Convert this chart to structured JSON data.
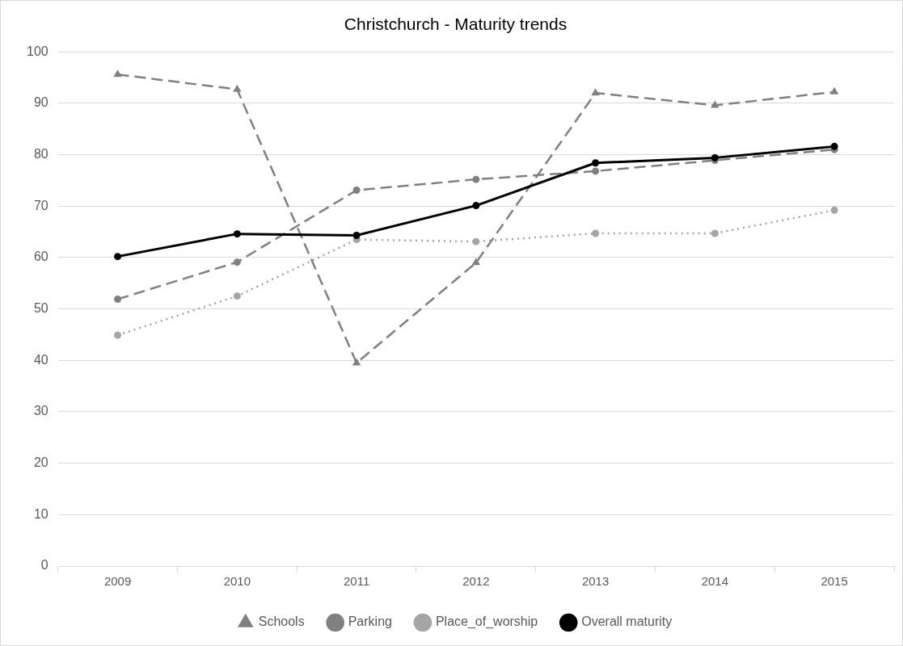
{
  "chart_data": {
    "type": "line",
    "title": "Christchurch - Maturity trends",
    "categories": [
      "2009",
      "2010",
      "2011",
      "2012",
      "2013",
      "2014",
      "2015"
    ],
    "series": [
      {
        "name": "Schools",
        "color": "#808080",
        "marker": "triangle",
        "line_style": "dashed",
        "values": [
          95.6,
          92.7,
          39.5,
          59.0,
          92.0,
          89.6,
          92.2
        ]
      },
      {
        "name": "Parking",
        "color": "#808080",
        "marker": "circle",
        "line_style": "dashed",
        "values": [
          51.9,
          59.1,
          73.1,
          75.2,
          76.8,
          78.9,
          81.0
        ]
      },
      {
        "name": "Place_of_worship",
        "color": "#a5a5a5",
        "marker": "circle",
        "line_style": "dotted",
        "values": [
          44.9,
          52.5,
          63.5,
          63.1,
          64.7,
          64.7,
          69.2
        ]
      },
      {
        "name": "Overall maturity",
        "color": "#000000",
        "marker": "circle",
        "line_style": "solid",
        "values": [
          60.2,
          64.6,
          64.3,
          70.1,
          78.4,
          79.4,
          81.6
        ]
      }
    ],
    "ylim": [
      0,
      100
    ],
    "yticks": [
      0,
      10,
      20,
      30,
      40,
      50,
      60,
      70,
      80,
      90,
      100
    ],
    "grid": "y",
    "legend": "bottom"
  }
}
